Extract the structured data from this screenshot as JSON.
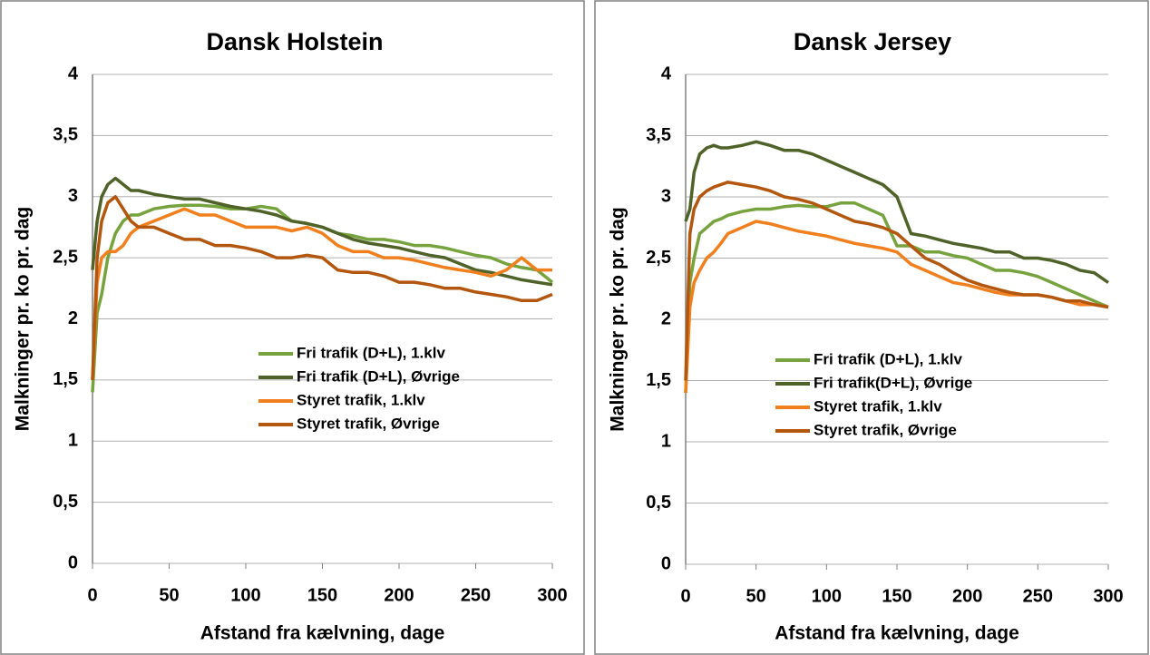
{
  "chart_data": [
    {
      "type": "line",
      "title": "Dansk Holstein",
      "x_label": "Afstand fra kælvning, dage",
      "y_label": "Malkninger pr. ko pr. dag",
      "x": [
        0,
        3,
        6,
        10,
        15,
        20,
        25,
        30,
        40,
        50,
        60,
        70,
        80,
        90,
        100,
        110,
        120,
        130,
        140,
        150,
        160,
        170,
        180,
        190,
        200,
        210,
        220,
        230,
        240,
        250,
        260,
        270,
        280,
        290,
        300
      ],
      "series": [
        {
          "name": "Fri trafik (D+L), 1.klv",
          "color": "#77a33f",
          "values": [
            1.4,
            2.05,
            2.2,
            2.5,
            2.7,
            2.8,
            2.85,
            2.85,
            2.9,
            2.92,
            2.93,
            2.93,
            2.92,
            2.9,
            2.9,
            2.92,
            2.9,
            2.8,
            2.78,
            2.75,
            2.7,
            2.68,
            2.65,
            2.65,
            2.63,
            2.6,
            2.6,
            2.58,
            2.55,
            2.52,
            2.5,
            2.45,
            2.42,
            2.4,
            2.3
          ]
        },
        {
          "name": "Fri trafik (D+L), Øvrige",
          "color": "#4f6228",
          "values": [
            2.4,
            2.8,
            3.0,
            3.1,
            3.15,
            3.1,
            3.05,
            3.05,
            3.02,
            3.0,
            2.98,
            2.98,
            2.95,
            2.92,
            2.9,
            2.88,
            2.85,
            2.8,
            2.78,
            2.75,
            2.7,
            2.65,
            2.62,
            2.6,
            2.58,
            2.55,
            2.52,
            2.5,
            2.45,
            2.4,
            2.38,
            2.35,
            2.32,
            2.3,
            2.28
          ]
        },
        {
          "name": "Styret trafik, 1.klv",
          "color": "#f07f1e",
          "values": [
            1.5,
            2.3,
            2.5,
            2.55,
            2.55,
            2.6,
            2.7,
            2.75,
            2.8,
            2.85,
            2.9,
            2.85,
            2.85,
            2.8,
            2.75,
            2.75,
            2.75,
            2.72,
            2.75,
            2.7,
            2.6,
            2.55,
            2.55,
            2.5,
            2.5,
            2.48,
            2.45,
            2.42,
            2.4,
            2.38,
            2.35,
            2.4,
            2.5,
            2.4,
            2.4
          ]
        },
        {
          "name": "Styret trafik, Øvrige",
          "color": "#b3560e",
          "values": [
            1.5,
            2.5,
            2.8,
            2.95,
            3.0,
            2.9,
            2.8,
            2.75,
            2.75,
            2.7,
            2.65,
            2.65,
            2.6,
            2.6,
            2.58,
            2.55,
            2.5,
            2.5,
            2.52,
            2.5,
            2.4,
            2.38,
            2.38,
            2.35,
            2.3,
            2.3,
            2.28,
            2.25,
            2.25,
            2.22,
            2.2,
            2.18,
            2.15,
            2.15,
            2.2
          ]
        }
      ],
      "xlim": [
        0,
        300
      ],
      "xticks": [
        0,
        50,
        100,
        150,
        200,
        250,
        300
      ],
      "ylim": [
        0,
        4
      ],
      "yticks": [
        0,
        {
          "value": 0.5,
          "label": "0,5"
        },
        1,
        {
          "value": 1.5,
          "label": "1,5"
        },
        2,
        {
          "value": 2.5,
          "label": "2,5"
        },
        3,
        {
          "value": 3.5,
          "label": "3,5"
        },
        4
      ],
      "grid": true
    },
    {
      "type": "line",
      "title": "Dansk Jersey",
      "x_label": "Afstand fra kælvning, dage",
      "y_label": "Malkninger pr. ko pr. dag",
      "x": [
        0,
        3,
        6,
        10,
        15,
        20,
        25,
        30,
        40,
        50,
        60,
        70,
        80,
        90,
        100,
        110,
        120,
        130,
        140,
        150,
        160,
        170,
        180,
        190,
        200,
        210,
        220,
        230,
        240,
        250,
        260,
        270,
        280,
        290,
        300
      ],
      "series": [
        {
          "name": "Fri trafik (D+L), 1.klv",
          "color": "#77a33f",
          "values": [
            1.4,
            2.3,
            2.5,
            2.7,
            2.75,
            2.8,
            2.82,
            2.85,
            2.88,
            2.9,
            2.9,
            2.92,
            2.93,
            2.92,
            2.92,
            2.95,
            2.95,
            2.9,
            2.85,
            2.6,
            2.6,
            2.55,
            2.55,
            2.52,
            2.5,
            2.45,
            2.4,
            2.4,
            2.38,
            2.35,
            2.3,
            2.25,
            2.2,
            2.15,
            2.1
          ]
        },
        {
          "name": "Fri trafik(D+L), Øvrige",
          "color": "#4f6228",
          "values": [
            2.8,
            2.9,
            3.2,
            3.35,
            3.4,
            3.42,
            3.4,
            3.4,
            3.42,
            3.45,
            3.42,
            3.38,
            3.38,
            3.35,
            3.3,
            3.25,
            3.2,
            3.15,
            3.1,
            3.0,
            2.7,
            2.68,
            2.65,
            2.62,
            2.6,
            2.58,
            2.55,
            2.55,
            2.5,
            2.5,
            2.48,
            2.45,
            2.4,
            2.38,
            2.3
          ]
        },
        {
          "name": "Styret trafik, 1.klv",
          "color": "#f07f1e",
          "values": [
            1.4,
            2.1,
            2.3,
            2.4,
            2.5,
            2.55,
            2.62,
            2.7,
            2.75,
            2.8,
            2.78,
            2.75,
            2.72,
            2.7,
            2.68,
            2.65,
            2.62,
            2.6,
            2.58,
            2.55,
            2.45,
            2.4,
            2.35,
            2.3,
            2.28,
            2.25,
            2.22,
            2.2,
            2.2,
            2.2,
            2.18,
            2.15,
            2.12,
            2.12,
            2.1
          ]
        },
        {
          "name": "Styret trafik, Øvrige",
          "color": "#b3560e",
          "values": [
            1.5,
            2.7,
            2.9,
            3.0,
            3.05,
            3.08,
            3.1,
            3.12,
            3.1,
            3.08,
            3.05,
            3.0,
            2.98,
            2.95,
            2.9,
            2.85,
            2.8,
            2.78,
            2.75,
            2.7,
            2.6,
            2.5,
            2.45,
            2.38,
            2.32,
            2.28,
            2.25,
            2.22,
            2.2,
            2.2,
            2.18,
            2.15,
            2.15,
            2.12,
            2.1
          ]
        }
      ],
      "xlim": [
        0,
        300
      ],
      "xticks": [
        0,
        50,
        100,
        150,
        200,
        250,
        300
      ],
      "ylim": [
        0,
        4
      ],
      "yticks": [
        0,
        {
          "value": 0.5,
          "label": "0,5"
        },
        1,
        {
          "value": 1.5,
          "label": "1,5"
        },
        2,
        {
          "value": 2.5,
          "label": "2,5"
        },
        3,
        {
          "value": 3.5,
          "label": "3,5"
        },
        4
      ],
      "grid": true
    }
  ]
}
